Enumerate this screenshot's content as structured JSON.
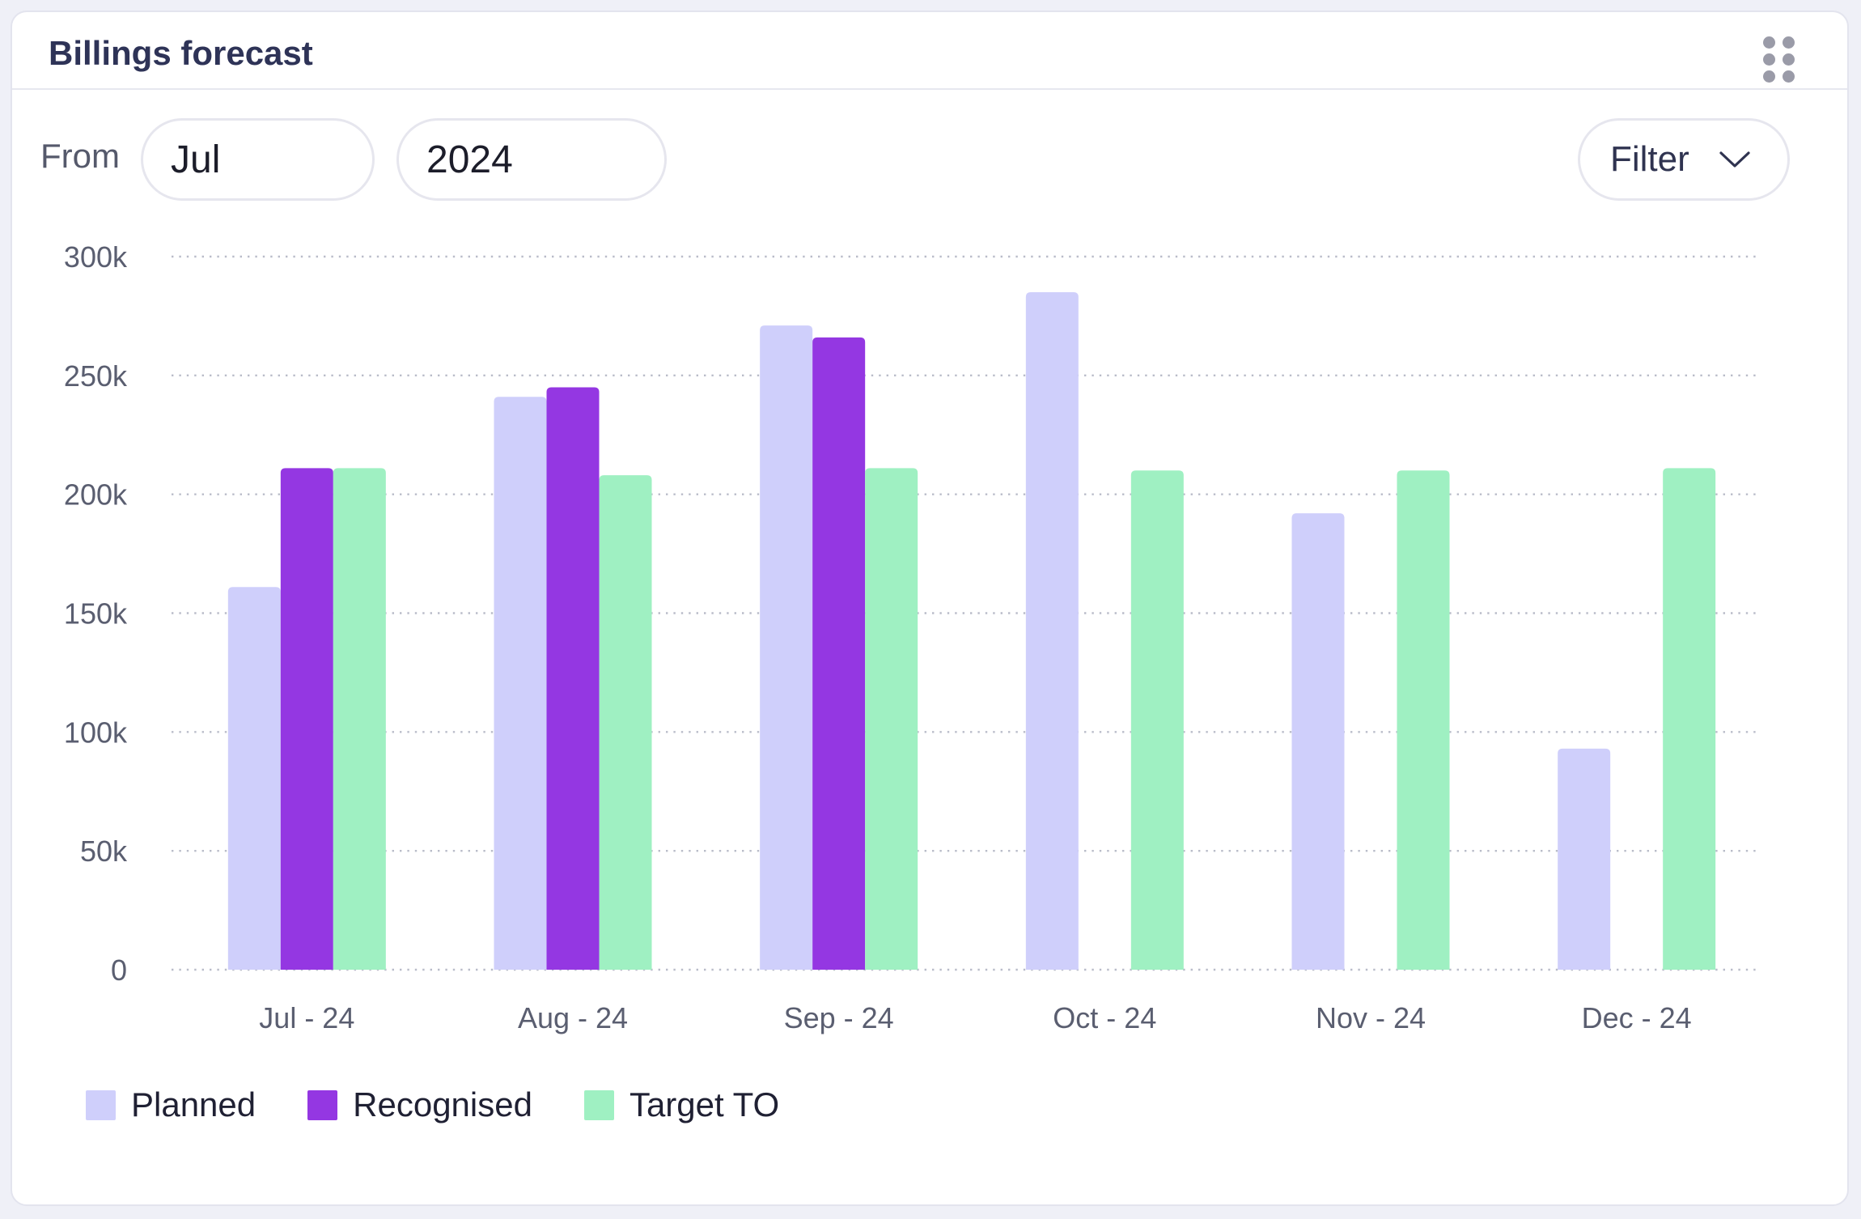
{
  "card": {
    "title": "Billings forecast"
  },
  "controls": {
    "from_label": "From",
    "month_value": "Jul",
    "year_value": "2024",
    "filter_label": "Filter"
  },
  "icons": {
    "drag_handle": "drag-handle-icon",
    "filter_chevron": "chevron-down-icon"
  },
  "colors": {
    "planned": "#cfcffb",
    "recognised": "#9437e2",
    "target": "#9ff0c2",
    "title": "#2e3357"
  },
  "chart_data": {
    "type": "bar",
    "title": "",
    "xlabel": "",
    "ylabel": "",
    "ylim": [
      0,
      300000
    ],
    "yticks": [
      0,
      50000,
      100000,
      150000,
      200000,
      250000,
      300000
    ],
    "ytick_labels": [
      "0",
      "50k",
      "100k",
      "150k",
      "200k",
      "250k",
      "300k"
    ],
    "grid": "horizontal dotted",
    "legend_position": "bottom-left",
    "categories": [
      "Jul - 24",
      "Aug - 24",
      "Sep - 24",
      "Oct - 24",
      "Nov - 24",
      "Dec - 24"
    ],
    "series": [
      {
        "name": "Planned",
        "color": "#cfcffb",
        "values": [
          161000,
          241000,
          271000,
          285000,
          192000,
          93000
        ]
      },
      {
        "name": "Recognised",
        "color": "#9437e2",
        "values": [
          211000,
          245000,
          266000,
          null,
          null,
          null
        ]
      },
      {
        "name": "Target TO",
        "color": "#9ff0c2",
        "values": [
          211000,
          208000,
          211000,
          210000,
          210000,
          211000
        ]
      }
    ]
  }
}
